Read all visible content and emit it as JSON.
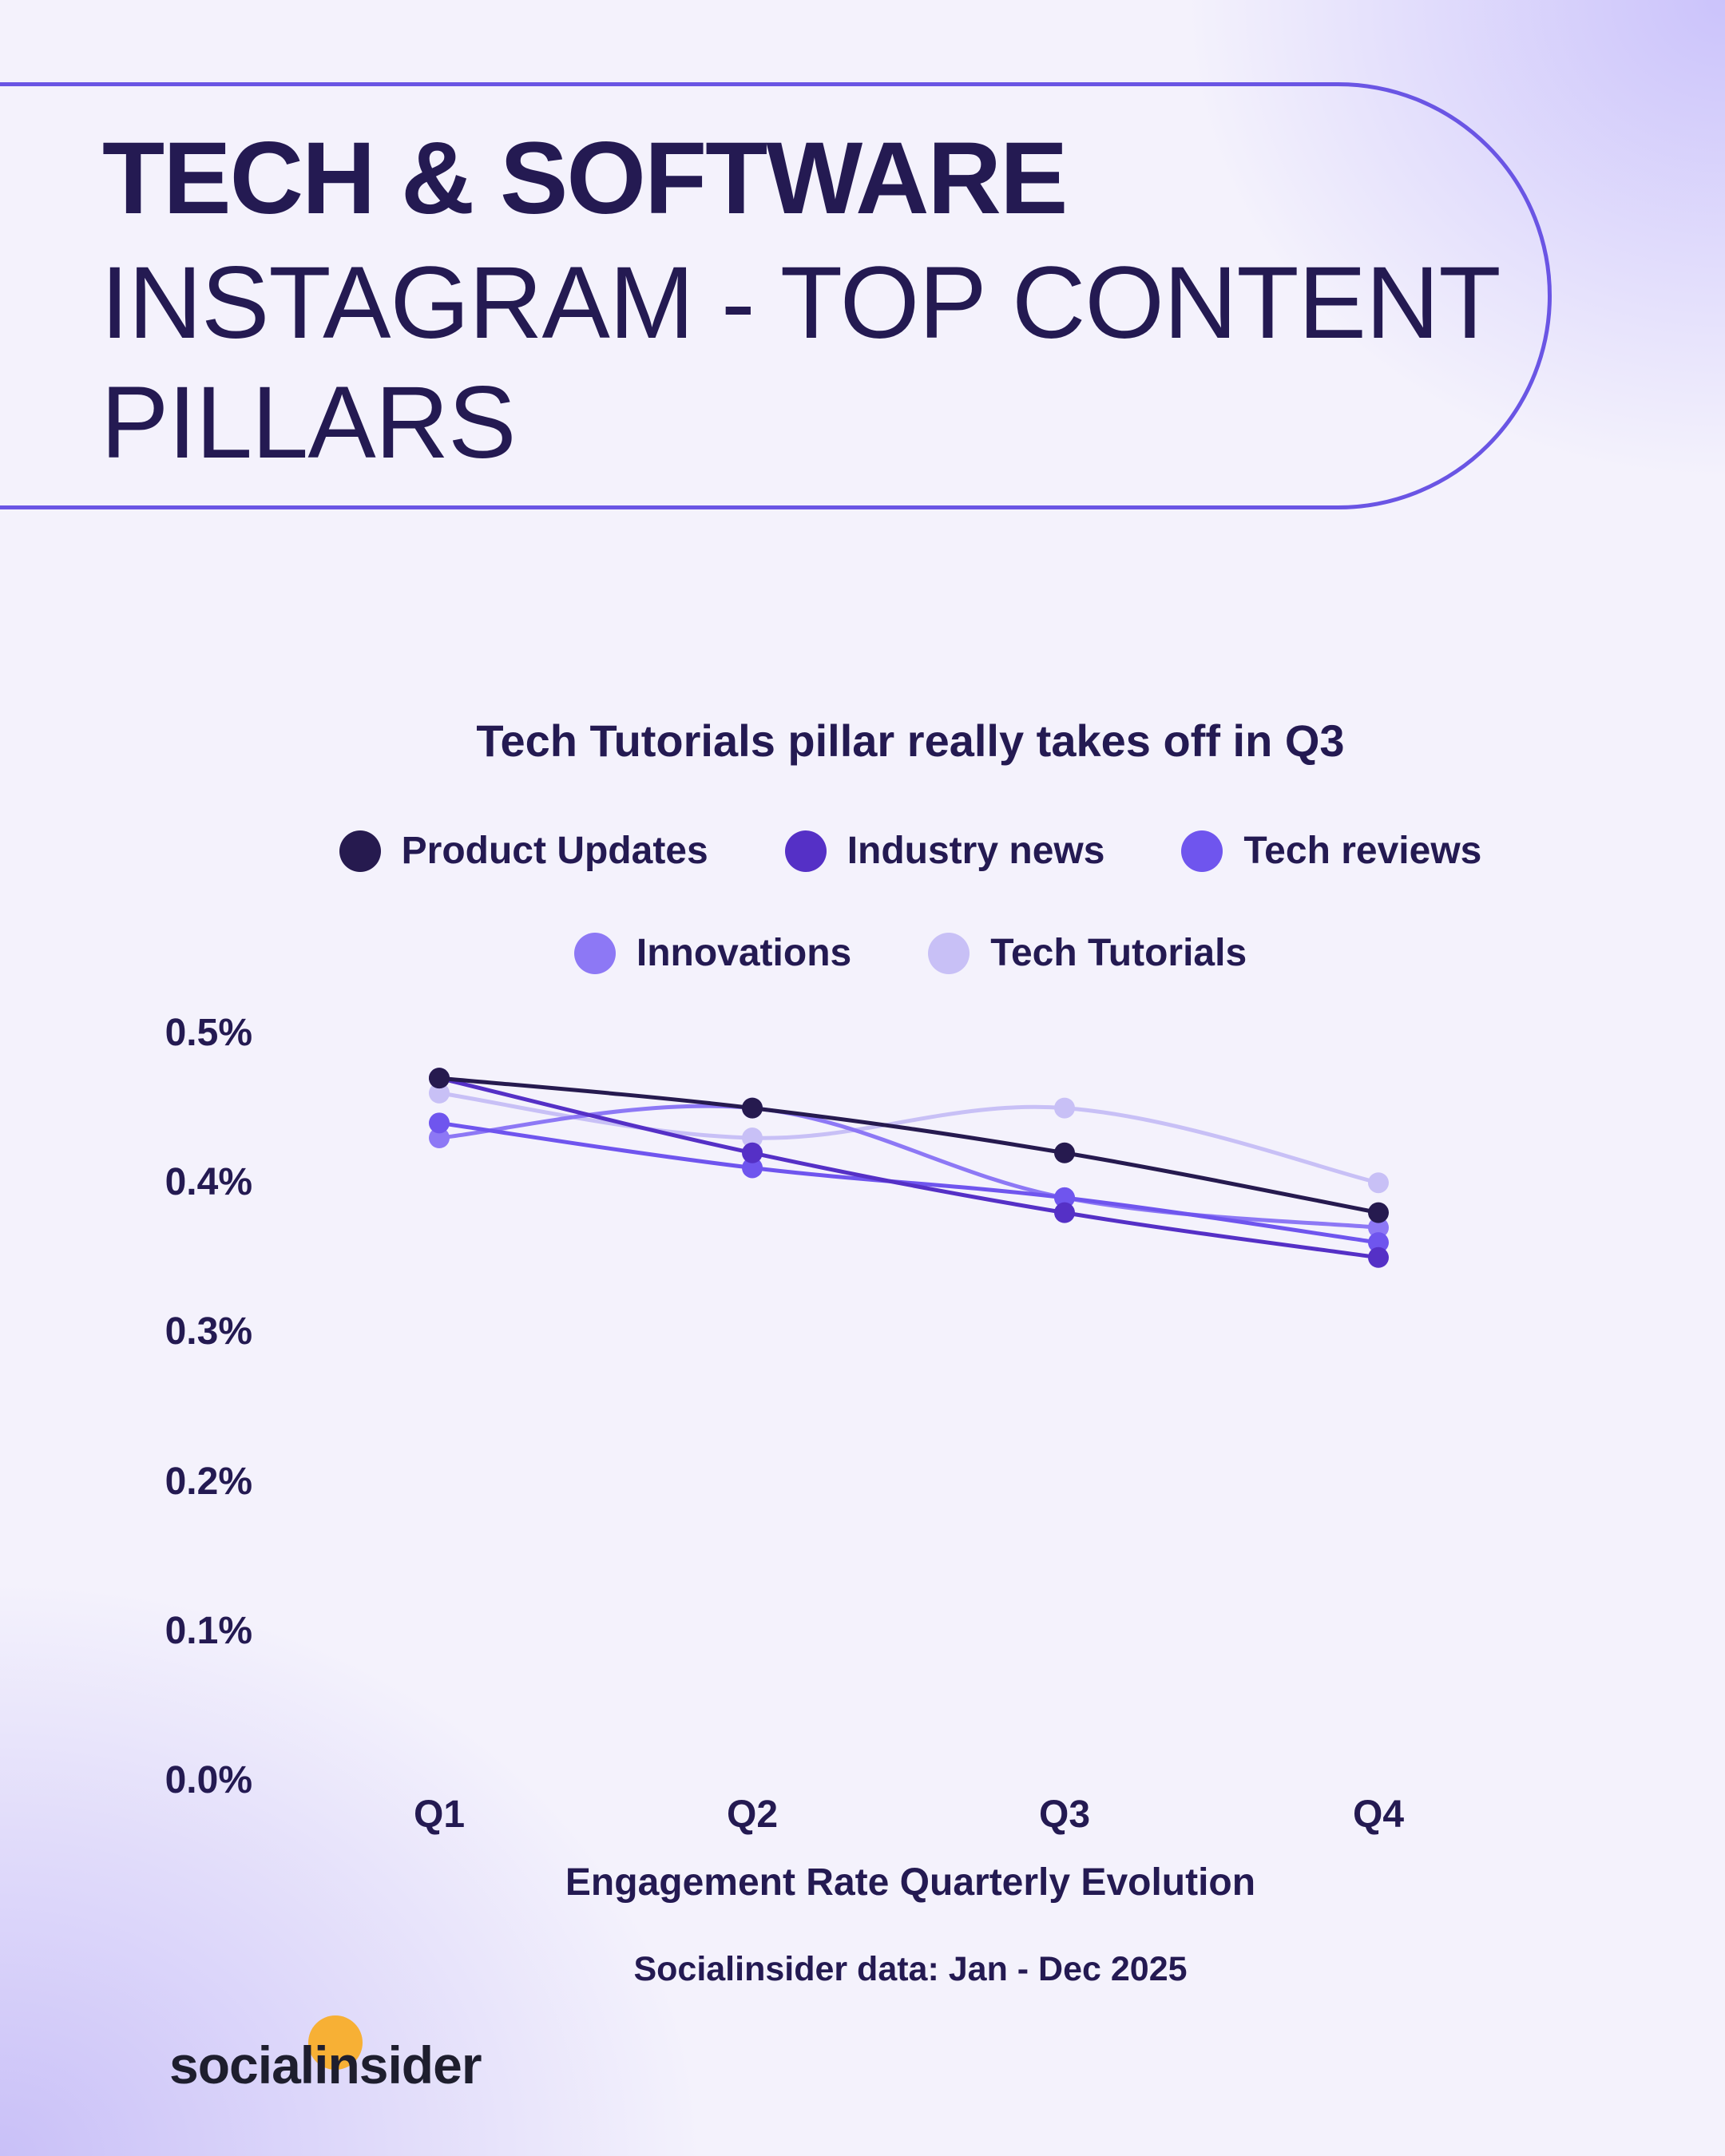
{
  "header": {
    "line1": "TECH & SOFTWARE",
    "line2": "INSTAGRAM - TOP CONTENT PILLARS"
  },
  "footer": {
    "source": "Socialinsider data: Jan - Dec 2025",
    "logo": "socialinsider"
  },
  "colors": {
    "accent": "#6a55e4",
    "text": "#241a52",
    "logo_dot": "#f7b035"
  },
  "chart_data": {
    "type": "line",
    "title": "Tech Tutorials pillar really takes off in Q3",
    "xlabel": "Engagement Rate Quarterly Evolution",
    "ylabel": "",
    "categories": [
      "Q1",
      "Q2",
      "Q3",
      "Q4"
    ],
    "ylim": [
      0,
      0.5
    ],
    "y_ticks": [
      "0.0%",
      "0.1%",
      "0.2%",
      "0.3%",
      "0.4%",
      "0.5%"
    ],
    "y_tick_values": [
      0,
      0.1,
      0.2,
      0.3,
      0.4,
      0.5
    ],
    "legend_position": "top",
    "grid": false,
    "series": [
      {
        "name": "Product Updates",
        "color": "#261a4f",
        "values": [
          0.47,
          0.45,
          0.42,
          0.38
        ]
      },
      {
        "name": "Industry news",
        "color": "#5530c6",
        "values": [
          0.47,
          0.42,
          0.38,
          0.35
        ]
      },
      {
        "name": "Tech reviews",
        "color": "#6f55ee",
        "values": [
          0.44,
          0.41,
          0.39,
          0.36
        ]
      },
      {
        "name": "Innovations",
        "color": "#8d78f5",
        "values": [
          0.43,
          0.45,
          0.39,
          0.37
        ]
      },
      {
        "name": "Tech Tutorials",
        "color": "#c8c0f6",
        "values": [
          0.46,
          0.43,
          0.45,
          0.4
        ]
      }
    ]
  }
}
